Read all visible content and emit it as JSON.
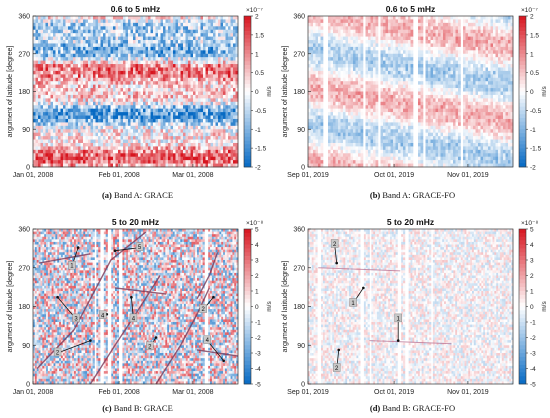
{
  "units_label": "m/s",
  "ylabel": "argument of latitude [degree]",
  "yticks": [
    "0",
    "90",
    "180",
    "270",
    "360"
  ],
  "panels": [
    {
      "id": "a",
      "title": "0.6 to 5 mHz",
      "caption_tag": "(a)",
      "caption_text": "Band A: GRACE",
      "xtick_labels": [
        "Jan 01, 2008",
        "Feb 01, 2008",
        "Mar 01, 2008"
      ],
      "colorbar": {
        "exponent": "×10⁻⁷",
        "ticks": [
          "2",
          "1.5",
          "1",
          "0.5",
          "0",
          "-0.5",
          "-1",
          "-1.5",
          "-2"
        ]
      }
    },
    {
      "id": "b",
      "title": "0.6 to 5 mHz",
      "caption_tag": "(b)",
      "caption_text": "Band A: GRACE-FO",
      "xtick_labels": [
        "Sep 01, 2019",
        "Oct 01, 2019",
        "Nov 01, 2019"
      ],
      "colorbar": {
        "exponent": "×10⁻⁷",
        "ticks": [
          "2",
          "1.5",
          "1",
          "0.5",
          "0",
          "-0.5",
          "-1",
          "-1.5",
          "-2"
        ]
      }
    },
    {
      "id": "c",
      "title": "5 to 20 mHz",
      "caption_tag": "(c)",
      "caption_text": "Band B: GRACE",
      "xtick_labels": [
        "Jan 01, 2008",
        "Feb 01, 2008",
        "Mar 01, 2008"
      ],
      "colorbar": {
        "exponent": "×10⁻⁸",
        "ticks": [
          "5",
          "4",
          "3",
          "2",
          "1",
          "0",
          "-1",
          "-2",
          "-3",
          "-4",
          "-5"
        ]
      },
      "annotations": [
        "1",
        "2",
        "3",
        "4",
        "5",
        "4",
        "2",
        "4",
        "2"
      ]
    },
    {
      "id": "d",
      "title": "5 to 20 mHz",
      "caption_tag": "(d)",
      "caption_text": "Band B: GRACE-FO",
      "xtick_labels": [
        "Sep 01, 2019",
        "Oct 01, 2019",
        "Nov 01, 2019"
      ],
      "colorbar": {
        "exponent": "×10⁻⁸",
        "ticks": [
          "5",
          "4",
          "3",
          "2",
          "1",
          "0",
          "-1",
          "-2",
          "-3",
          "-4",
          "-5"
        ]
      },
      "annotations": [
        "2",
        "1",
        "1",
        "2"
      ]
    }
  ],
  "chart_data": [
    {
      "type": "heatmap",
      "title": "0.6 to 5 mHz",
      "ylabel": "argument of latitude [degree]",
      "ylim": [
        0,
        360
      ],
      "x_dates": [
        "Jan 01, 2008",
        "Feb 01, 2008",
        "Mar 01, 2008"
      ],
      "colorbar_label": "m/s",
      "clim": [
        -2e-07,
        2e-07
      ]
    },
    {
      "type": "heatmap",
      "title": "0.6 to 5 mHz",
      "ylabel": "argument of latitude [degree]",
      "ylim": [
        0,
        360
      ],
      "x_dates": [
        "Sep 01, 2019",
        "Oct 01, 2019",
        "Nov 01, 2019"
      ],
      "colorbar_label": "m/s",
      "clim": [
        -2e-07,
        2e-07
      ]
    },
    {
      "type": "heatmap",
      "title": "5 to 20 mHz",
      "ylabel": "argument of latitude [degree]",
      "ylim": [
        0,
        360
      ],
      "x_dates": [
        "Jan 01, 2008",
        "Feb 01, 2008",
        "Mar 01, 2008"
      ],
      "colorbar_label": "m/s",
      "clim": [
        -5e-08,
        5e-08
      ]
    },
    {
      "type": "heatmap",
      "title": "5 to 20 mHz",
      "ylabel": "argument of latitude [degree]",
      "ylim": [
        0,
        360
      ],
      "x_dates": [
        "Sep 01, 2019",
        "Oct 01, 2019",
        "Nov 01, 2019"
      ],
      "colorbar_label": "m/s",
      "clim": [
        -5e-08,
        5e-08
      ]
    }
  ]
}
